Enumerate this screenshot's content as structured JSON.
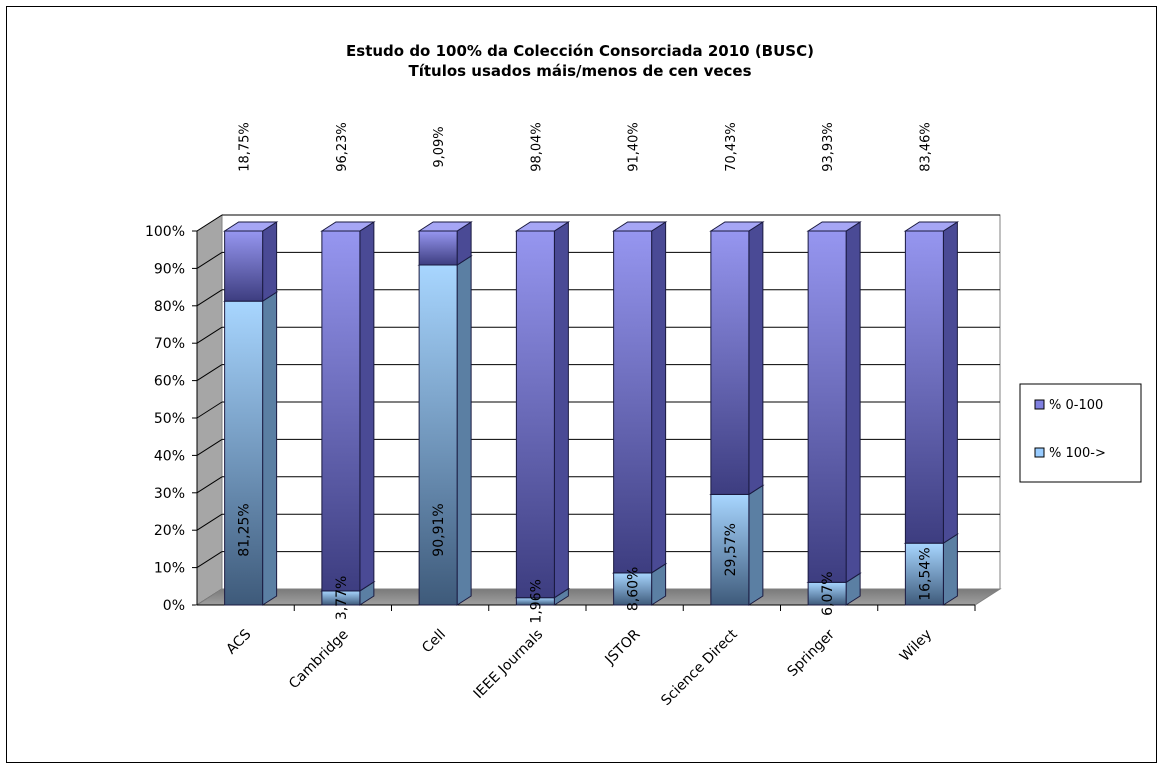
{
  "chart_data": {
    "type": "bar",
    "stacked": true,
    "three_d": true,
    "title": "Estudo do 100% da Colección Consorciada 2010 (BUSC)",
    "subtitle": "Títulos usados máis/menos de cen veces",
    "categories": [
      "ACS",
      "Cambridge",
      "Cell",
      "IEEE Journals",
      "JSTOR",
      "Science Direct",
      "Springer",
      "Wiley"
    ],
    "series": [
      {
        "name": "% 100->",
        "color": "#99ccff",
        "values": [
          81.25,
          3.77,
          90.91,
          1.96,
          8.6,
          29.57,
          6.07,
          16.54
        ],
        "labels": [
          "81,25%",
          "3,77%",
          "90,91%",
          "1,96%",
          "8,60%",
          "29,57%",
          "6,07%",
          "16,54%"
        ]
      },
      {
        "name": "% 0-100",
        "color": "#8080e0",
        "values": [
          18.75,
          96.23,
          9.09,
          98.04,
          91.4,
          70.43,
          93.93,
          83.46
        ],
        "labels": [
          "18,75%",
          "96,23%",
          "9,09%",
          "98,04%",
          "91,40%",
          "70,43%",
          "93,93%",
          "83,46%"
        ]
      }
    ],
    "yticks": [
      "0%",
      "10%",
      "20%",
      "30%",
      "40%",
      "50%",
      "60%",
      "70%",
      "80%",
      "90%",
      "100%"
    ],
    "ylim": [
      0,
      100
    ],
    "grid": true,
    "legend_position": "right"
  }
}
